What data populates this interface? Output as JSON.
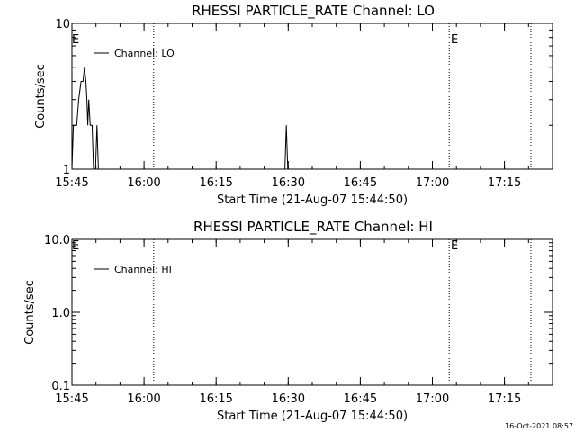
{
  "chart_data": [
    {
      "type": "line",
      "title": "RHESSI PARTICLE_RATE Channel: LO",
      "xlabel": "Start Time (21-Aug-07 15:44:50)",
      "ylabel": "Counts/sec",
      "y_scale": "log",
      "ylim": [
        1,
        10
      ],
      "xlim": [
        "15:45",
        "17:25"
      ],
      "x_tick_labels": [
        "15:45",
        "16:00",
        "16:15",
        "16:30",
        "16:45",
        "17:00",
        "17:15"
      ],
      "y_tick_labels": [
        {
          "value": 1,
          "label": "1"
        },
        {
          "value": 10,
          "label": "10"
        }
      ],
      "legend": {
        "position": "top-left",
        "entries": [
          "Channel: LO"
        ]
      },
      "marker_labels": [
        "E",
        "E"
      ],
      "vertical_markers": [
        "16:02",
        "17:03.5",
        "17:20.5"
      ],
      "series": [
        {
          "name": "Channel: LO",
          "points": [
            [
              "15:45.0",
              1
            ],
            [
              "15:45.3",
              2
            ],
            [
              "15:46.0",
              2
            ],
            [
              "15:46.4",
              3
            ],
            [
              "15:46.9",
              4
            ],
            [
              "15:47.3",
              4
            ],
            [
              "15:47.6",
              5
            ],
            [
              "15:47.9",
              4
            ],
            [
              "15:48.1",
              3
            ],
            [
              "15:48.3",
              2
            ],
            [
              "15:48.5",
              3
            ],
            [
              "15:48.8",
              2
            ],
            [
              "15:49.2",
              2
            ],
            [
              "15:49.5",
              1
            ],
            [
              "15:49.9",
              1
            ],
            [
              "15:50.2",
              2
            ],
            [
              "15:50.5",
              1
            ],
            [
              "15:51.0",
              1
            ],
            [
              "16:29.3",
              1
            ],
            [
              "16:29.6",
              2
            ],
            [
              "16:29.9",
              1
            ]
          ]
        }
      ]
    },
    {
      "type": "line",
      "title": "RHESSI PARTICLE_RATE Channel: HI",
      "xlabel": "Start Time (21-Aug-07 15:44:50)",
      "ylabel": "Counts/sec",
      "y_scale": "log",
      "ylim": [
        0.1,
        10
      ],
      "xlim": [
        "15:45",
        "17:25"
      ],
      "x_tick_labels": [
        "15:45",
        "16:00",
        "16:15",
        "16:30",
        "16:45",
        "17:00",
        "17:15"
      ],
      "y_tick_labels": [
        {
          "value": 0.1,
          "label": "0.1"
        },
        {
          "value": 1,
          "label": "1.0"
        },
        {
          "value": 10,
          "label": "10.0"
        }
      ],
      "legend": {
        "position": "top-left",
        "entries": [
          "Channel: HI"
        ]
      },
      "marker_labels": [
        "E",
        "E"
      ],
      "vertical_markers": [
        "16:02",
        "17:03.5",
        "17:20.5"
      ],
      "series": [
        {
          "name": "Channel: HI",
          "points": []
        }
      ]
    }
  ],
  "footer": {
    "timestamp": "16-Oct-2021 08:57"
  }
}
